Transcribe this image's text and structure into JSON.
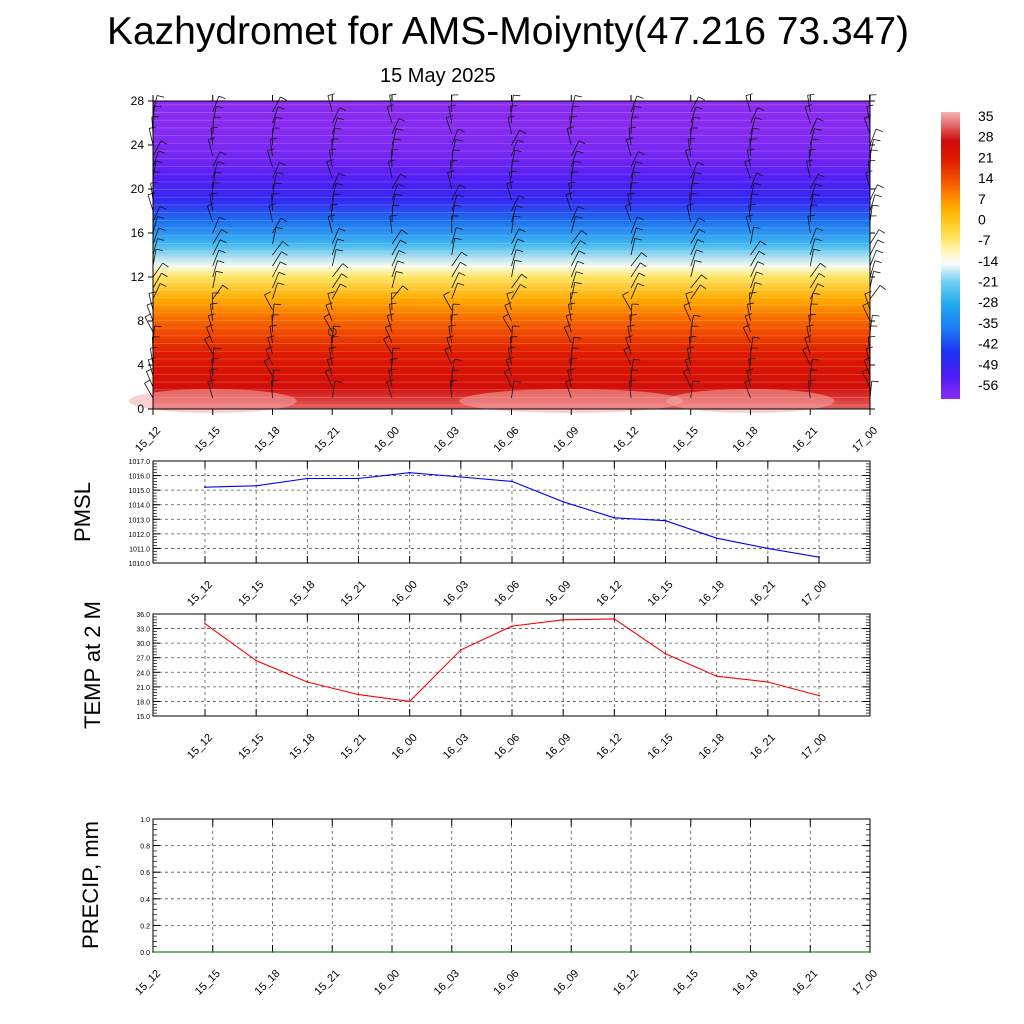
{
  "title": "Kazhydromet for AMS-Moiynty(47.216 73.347)",
  "subtitle": "15 May 2025",
  "chart_data": [
    {
      "type": "heatmap",
      "name": "time-height cross-section",
      "x_ticks": [
        "15_12",
        "15_15",
        "15_18",
        "15_21",
        "16_00",
        "16_03",
        "16_06",
        "16_09",
        "16_12",
        "16_15",
        "16_18",
        "16_21",
        "17_00"
      ],
      "y_ticks": [
        0,
        4,
        8,
        12,
        16,
        20,
        24,
        28
      ],
      "ylim": [
        0,
        28
      ],
      "colorbar": {
        "labels": [
          "35",
          "28",
          "21",
          "14",
          "7",
          "0",
          "-7",
          "-14",
          "-21",
          "-28",
          "-35",
          "-42",
          "-49",
          "-56"
        ],
        "range": [
          -60,
          38
        ]
      },
      "temperature_profile": [
        {
          "y": 0,
          "t": 33
        },
        {
          "y": 2,
          "t": 27
        },
        {
          "y": 5,
          "t": 22
        },
        {
          "y": 8,
          "t": 13
        },
        {
          "y": 10,
          "t": 5
        },
        {
          "y": 12,
          "t": -5
        },
        {
          "y": 13,
          "t": -13
        },
        {
          "y": 15,
          "t": -25
        },
        {
          "y": 17,
          "t": -37
        },
        {
          "y": 19,
          "t": -48
        },
        {
          "y": 21,
          "t": -53
        },
        {
          "y": 23,
          "t": -57
        },
        {
          "y": 25,
          "t": -59
        },
        {
          "y": 28,
          "t": -60
        }
      ],
      "wind_barbs": true
    },
    {
      "type": "line",
      "ylabel": "PMSL",
      "categories": [
        "15_12",
        "15_15",
        "15_18",
        "15_21",
        "16_00",
        "16_03",
        "16_06",
        "16_09",
        "16_12",
        "16_15",
        "16_18",
        "16_21",
        "17_00"
      ],
      "series": [
        {
          "color": "#0000ff",
          "values": [
            1015.2,
            1015.3,
            1015.8,
            1015.8,
            1016.2,
            1015.9,
            1015.6,
            1014.2,
            1013.1,
            1012.9,
            1011.7,
            1011.0,
            1010.4
          ]
        }
      ],
      "ylim": [
        1010.0,
        1017.0
      ],
      "y_ticks": [
        "1010.0",
        "1011.0",
        "1012.0",
        "1013.0",
        "1014.0",
        "1015.0",
        "1016.0",
        "1017.0"
      ],
      "grid": true
    },
    {
      "type": "line",
      "ylabel": "TEMP at 2 M",
      "categories": [
        "15_12",
        "15_15",
        "15_18",
        "15_21",
        "16_00",
        "16_03",
        "16_06",
        "16_09",
        "16_12",
        "16_15",
        "16_18",
        "16_21",
        "17_00"
      ],
      "series": [
        {
          "color": "#ff0000",
          "values": [
            34.0,
            26.4,
            22.0,
            19.4,
            18.0,
            28.6,
            33.5,
            34.8,
            35.0,
            27.8,
            23.2,
            22.0,
            19.2
          ]
        }
      ],
      "ylim": [
        15.0,
        36.0
      ],
      "y_ticks": [
        "15.0",
        "18.0",
        "21.0",
        "24.0",
        "27.0",
        "30.0",
        "33.0",
        "36.0"
      ],
      "grid": true
    },
    {
      "type": "line",
      "ylabel": "PRECIP, mm",
      "categories": [
        "15_12",
        "15_15",
        "15_18",
        "15_21",
        "16_00",
        "16_03",
        "16_06",
        "16_09",
        "16_12",
        "16_15",
        "16_18",
        "16_21",
        "17_00"
      ],
      "series": [
        {
          "color": "#006400",
          "values": [
            0,
            0,
            0,
            0,
            0,
            0,
            0,
            0,
            0,
            0,
            0,
            0,
            0
          ]
        }
      ],
      "ylim": [
        0.0,
        1.0
      ],
      "y_ticks": [
        "0.0",
        "0.2",
        "0.4",
        "0.6",
        "0.8",
        "1.0"
      ],
      "grid": true
    }
  ]
}
